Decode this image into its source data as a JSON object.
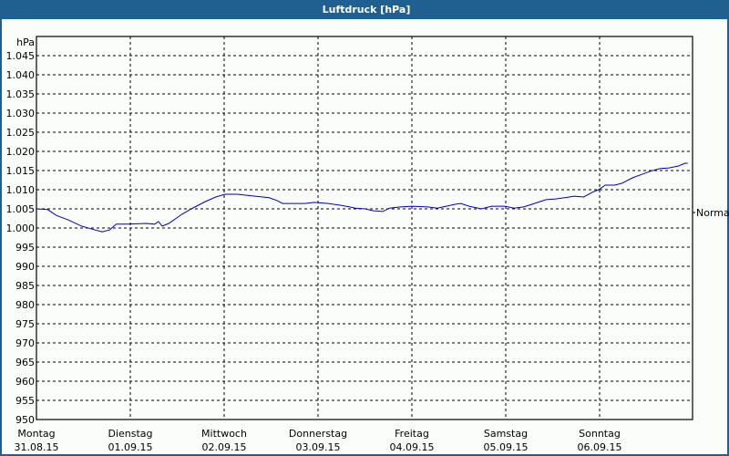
{
  "window": {
    "title": "Luftdruck [hPa]",
    "accent_color": "#1f6091"
  },
  "chart_data": {
    "type": "line",
    "title": "Luftdruck [hPa]",
    "ylabel": "hPa",
    "xlabel": "",
    "ylim": [
      950,
      1050
    ],
    "grid": true,
    "y_ticks": [
      "950",
      "955",
      "960",
      "965",
      "970",
      "975",
      "980",
      "985",
      "990",
      "995",
      "1.000",
      "1.005",
      "1.010",
      "1.015",
      "1.020",
      "1.025",
      "1.030",
      "1.035",
      "1.040",
      "1.045"
    ],
    "x_ticks": [
      {
        "day": "Montag",
        "date": "31.08.15"
      },
      {
        "day": "Dienstag",
        "date": "01.09.15"
      },
      {
        "day": "Mittwoch",
        "date": "02.09.15"
      },
      {
        "day": "Donnerstag",
        "date": "03.09.15"
      },
      {
        "day": "Freitag",
        "date": "04.09.15"
      },
      {
        "day": "Samstag",
        "date": "05.09.15"
      },
      {
        "day": "Sonntag",
        "date": "06.09.15"
      }
    ],
    "reference_line": {
      "label": "Normal",
      "value": 1003.8
    },
    "series": [
      {
        "name": "Luftdruck",
        "color": "#0000c0",
        "x_days": [
          0,
          0.12,
          0.21,
          0.34,
          0.48,
          0.58,
          0.7,
          0.78,
          0.85,
          0.97,
          1.17,
          1.26,
          1.3,
          1.34,
          1.41,
          1.55,
          1.65,
          1.8,
          1.91,
          2.01,
          2.14,
          2.33,
          2.48,
          2.57,
          2.62,
          2.86,
          2.96,
          3.11,
          3.25,
          3.4,
          3.5,
          3.59,
          3.69,
          3.76,
          3.88,
          4.01,
          4.17,
          4.27,
          4.46,
          4.52,
          4.61,
          4.74,
          4.85,
          4.99,
          5.09,
          5.19,
          5.28,
          5.43,
          5.53,
          5.63,
          5.73,
          5.83,
          5.92,
          5.99,
          6.06,
          6.16,
          6.24,
          6.35,
          6.45,
          6.54,
          6.64,
          6.74,
          6.84,
          6.91,
          6.94
        ],
        "values": [
          1005.0,
          1004.8,
          1003.3,
          1002.1,
          1000.5,
          999.8,
          999.0,
          999.5,
          1001.0,
          1001.0,
          1001.2,
          1001.0,
          1001.7,
          1000.5,
          1001.2,
          1003.6,
          1005.0,
          1006.9,
          1008.1,
          1008.8,
          1008.8,
          1008.3,
          1007.9,
          1007.1,
          1006.4,
          1006.4,
          1006.7,
          1006.4,
          1005.9,
          1005.2,
          1005.0,
          1004.5,
          1004.3,
          1005.2,
          1005.5,
          1005.7,
          1005.5,
          1005.2,
          1006.2,
          1006.4,
          1005.7,
          1005.0,
          1005.7,
          1005.7,
          1005.2,
          1005.5,
          1006.2,
          1007.4,
          1007.6,
          1007.9,
          1008.3,
          1008.1,
          1009.3,
          1010.0,
          1011.2,
          1011.2,
          1011.7,
          1013.1,
          1014.0,
          1014.8,
          1015.5,
          1015.7,
          1016.2,
          1016.9,
          1016.9
        ]
      }
    ]
  }
}
